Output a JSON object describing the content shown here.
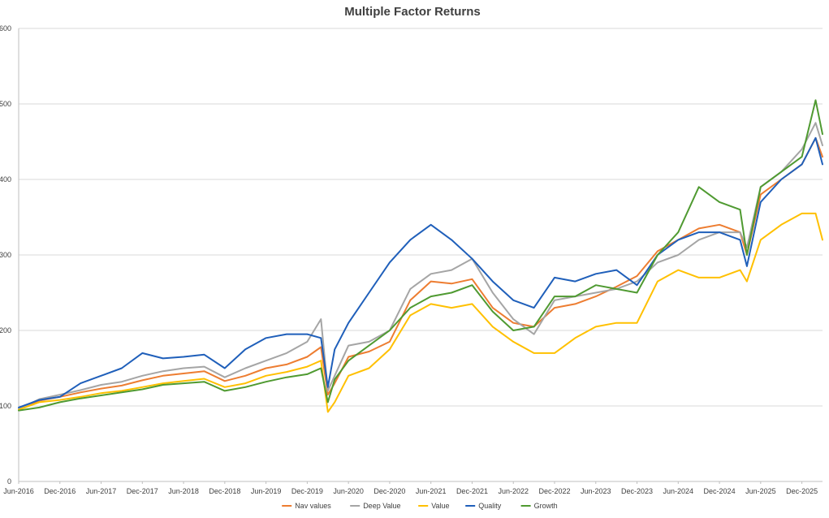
{
  "chart_data": {
    "type": "line",
    "title": "Multiple Factor Returns",
    "xlabel": "",
    "ylabel": "",
    "ylim": [
      0,
      600
    ],
    "yticks": [
      0,
      100,
      200,
      300,
      400,
      500,
      600
    ],
    "x_range": [
      "2016-06",
      "2026-03"
    ],
    "xtick_labels": [
      "Jun-2016",
      "Dec-2016",
      "Jun-2017",
      "Dec-2017",
      "Jun-2018",
      "Dec-2018",
      "Jun-2019",
      "Dec-2019",
      "Jun-2020",
      "Dec-2020",
      "Jun-2021",
      "Dec-2021",
      "Jun-2022",
      "Dec-2022",
      "Jun-2023",
      "Dec-2023",
      "Jun-2024",
      "Dec-2024",
      "Jun-2025",
      "Dec-2025"
    ],
    "xticks": [
      "2016-06",
      "2016-12",
      "2017-06",
      "2017-12",
      "2018-06",
      "2018-12",
      "2019-06",
      "2019-12",
      "2020-06",
      "2020-12",
      "2021-06",
      "2021-12",
      "2022-06",
      "2022-12",
      "2023-06",
      "2023-12",
      "2024-06",
      "2024-12",
      "2025-06",
      "2025-12"
    ],
    "grid": true,
    "legend_position": "bottom",
    "series": [
      {
        "name": "Nav values",
        "color": "#ed7d31",
        "x": [
          "2016-06",
          "2016-09",
          "2016-12",
          "2017-03",
          "2017-06",
          "2017-09",
          "2017-12",
          "2018-03",
          "2018-06",
          "2018-09",
          "2018-12",
          "2019-03",
          "2019-06",
          "2019-09",
          "2019-12",
          "2020-02",
          "2020-03",
          "2020-04",
          "2020-06",
          "2020-09",
          "2020-12",
          "2021-03",
          "2021-06",
          "2021-09",
          "2021-12",
          "2022-03",
          "2022-06",
          "2022-09",
          "2022-12",
          "2023-03",
          "2023-06",
          "2023-09",
          "2023-12",
          "2024-03",
          "2024-06",
          "2024-09",
          "2024-12",
          "2025-03",
          "2025-04",
          "2025-06",
          "2025-09",
          "2025-12",
          "2026-02",
          "2026-03"
        ],
        "values": [
          95,
          107,
          112,
          118,
          123,
          127,
          134,
          140,
          143,
          146,
          133,
          140,
          150,
          155,
          165,
          178,
          115,
          130,
          165,
          172,
          185,
          240,
          265,
          262,
          268,
          230,
          210,
          205,
          230,
          235,
          245,
          258,
          272,
          305,
          320,
          335,
          340,
          330,
          300,
          380,
          400,
          420,
          455,
          430
        ]
      },
      {
        "name": "Deep Value",
        "color": "#a5a5a5",
        "x": [
          "2016-06",
          "2016-09",
          "2016-12",
          "2017-03",
          "2017-06",
          "2017-09",
          "2017-12",
          "2018-03",
          "2018-06",
          "2018-09",
          "2018-12",
          "2019-03",
          "2019-06",
          "2019-09",
          "2019-12",
          "2020-02",
          "2020-03",
          "2020-04",
          "2020-06",
          "2020-09",
          "2020-12",
          "2021-03",
          "2021-06",
          "2021-09",
          "2021-12",
          "2022-03",
          "2022-06",
          "2022-09",
          "2022-12",
          "2023-03",
          "2023-06",
          "2023-09",
          "2023-12",
          "2024-03",
          "2024-06",
          "2024-09",
          "2024-12",
          "2025-03",
          "2025-04",
          "2025-06",
          "2025-09",
          "2025-12",
          "2026-02",
          "2026-03"
        ],
        "values": [
          96,
          109,
          115,
          121,
          128,
          132,
          140,
          146,
          150,
          152,
          138,
          150,
          160,
          170,
          185,
          215,
          120,
          140,
          180,
          185,
          200,
          255,
          275,
          280,
          295,
          250,
          215,
          195,
          240,
          245,
          250,
          255,
          265,
          290,
          300,
          320,
          330,
          330,
          310,
          390,
          410,
          440,
          475,
          445
        ]
      },
      {
        "name": "Value",
        "color": "#ffc000",
        "x": [
          "2016-06",
          "2016-09",
          "2016-12",
          "2017-03",
          "2017-06",
          "2017-09",
          "2017-12",
          "2018-03",
          "2018-06",
          "2018-09",
          "2018-12",
          "2019-03",
          "2019-06",
          "2019-09",
          "2019-12",
          "2020-02",
          "2020-03",
          "2020-04",
          "2020-06",
          "2020-09",
          "2020-12",
          "2021-03",
          "2021-06",
          "2021-09",
          "2021-12",
          "2022-03",
          "2022-06",
          "2022-09",
          "2022-12",
          "2023-03",
          "2023-06",
          "2023-09",
          "2023-12",
          "2024-03",
          "2024-06",
          "2024-09",
          "2024-12",
          "2025-03",
          "2025-04",
          "2025-06",
          "2025-09",
          "2025-12",
          "2026-02",
          "2026-03"
        ],
        "values": [
          95,
          105,
          108,
          112,
          117,
          120,
          125,
          130,
          133,
          136,
          125,
          130,
          140,
          145,
          152,
          160,
          92,
          105,
          140,
          150,
          175,
          220,
          235,
          230,
          235,
          205,
          185,
          170,
          170,
          190,
          205,
          210,
          210,
          265,
          280,
          270,
          270,
          280,
          265,
          320,
          340,
          355,
          355,
          320
        ]
      },
      {
        "name": "Quality",
        "color": "#1f5fba",
        "x": [
          "2016-06",
          "2016-09",
          "2016-12",
          "2017-03",
          "2017-06",
          "2017-09",
          "2017-12",
          "2018-03",
          "2018-06",
          "2018-09",
          "2018-12",
          "2019-03",
          "2019-06",
          "2019-09",
          "2019-12",
          "2020-02",
          "2020-03",
          "2020-04",
          "2020-06",
          "2020-09",
          "2020-12",
          "2021-03",
          "2021-06",
          "2021-09",
          "2021-12",
          "2022-03",
          "2022-06",
          "2022-09",
          "2022-12",
          "2023-03",
          "2023-06",
          "2023-09",
          "2023-12",
          "2024-03",
          "2024-06",
          "2024-09",
          "2024-12",
          "2025-03",
          "2025-04",
          "2025-06",
          "2025-09",
          "2025-12",
          "2026-02",
          "2026-03"
        ],
        "values": [
          98,
          108,
          112,
          130,
          140,
          150,
          170,
          163,
          165,
          168,
          150,
          175,
          190,
          195,
          195,
          190,
          125,
          175,
          210,
          250,
          290,
          320,
          340,
          320,
          295,
          265,
          240,
          230,
          270,
          265,
          275,
          280,
          260,
          300,
          320,
          330,
          330,
          320,
          285,
          370,
          400,
          420,
          455,
          420
        ]
      },
      {
        "name": "Growth",
        "color": "#4f9a31",
        "x": [
          "2016-06",
          "2016-09",
          "2016-12",
          "2017-03",
          "2017-06",
          "2017-09",
          "2017-12",
          "2018-03",
          "2018-06",
          "2018-09",
          "2018-12",
          "2019-03",
          "2019-06",
          "2019-09",
          "2019-12",
          "2020-02",
          "2020-03",
          "2020-04",
          "2020-06",
          "2020-09",
          "2020-12",
          "2021-03",
          "2021-06",
          "2021-09",
          "2021-12",
          "2022-03",
          "2022-06",
          "2022-09",
          "2022-12",
          "2023-03",
          "2023-06",
          "2023-09",
          "2023-12",
          "2024-03",
          "2024-06",
          "2024-09",
          "2024-12",
          "2025-03",
          "2025-04",
          "2025-06",
          "2025-09",
          "2025-12",
          "2026-02",
          "2026-03"
        ],
        "values": [
          94,
          98,
          105,
          110,
          114,
          118,
          122,
          128,
          130,
          132,
          120,
          125,
          132,
          138,
          142,
          150,
          105,
          135,
          160,
          180,
          200,
          230,
          245,
          250,
          260,
          225,
          200,
          205,
          245,
          245,
          260,
          255,
          250,
          300,
          330,
          390,
          370,
          360,
          300,
          390,
          410,
          430,
          505,
          460
        ]
      }
    ]
  }
}
